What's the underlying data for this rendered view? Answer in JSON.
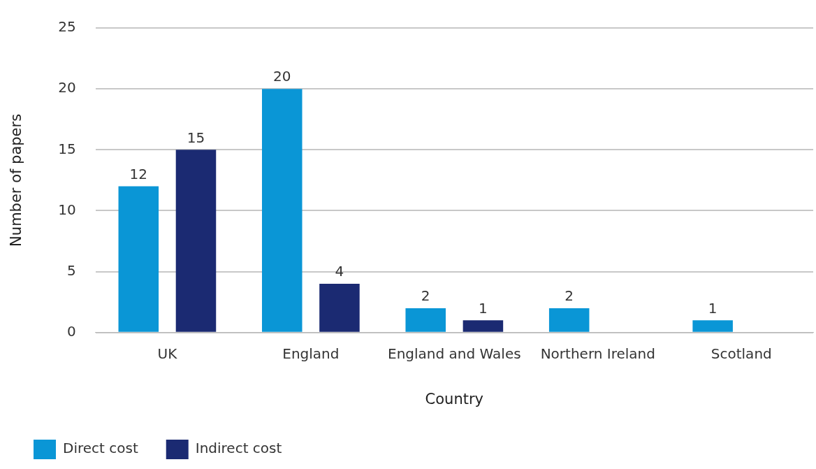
{
  "chart_data": {
    "type": "bar",
    "xlabel": "Country",
    "ylabel": "Number of papers",
    "categories": [
      "UK",
      "England",
      "England and Wales",
      "Northern Ireland",
      "Scotland"
    ],
    "series": [
      {
        "name": "Direct cost",
        "color": "#0a96d6",
        "values": [
          12,
          20,
          2,
          2,
          1
        ],
        "value_labels": [
          "12",
          "20",
          "2",
          "2",
          "1"
        ]
      },
      {
        "name": "Indirect cost",
        "color": "#1b2a72",
        "values": [
          15,
          4,
          1,
          0,
          0
        ],
        "value_labels": [
          "15",
          "4",
          "1",
          null,
          null
        ]
      }
    ],
    "ylim": [
      0,
      25
    ],
    "yticks": [
      0,
      5,
      10,
      15,
      20,
      25
    ],
    "grid": "y",
    "legend": "bottom left"
  }
}
